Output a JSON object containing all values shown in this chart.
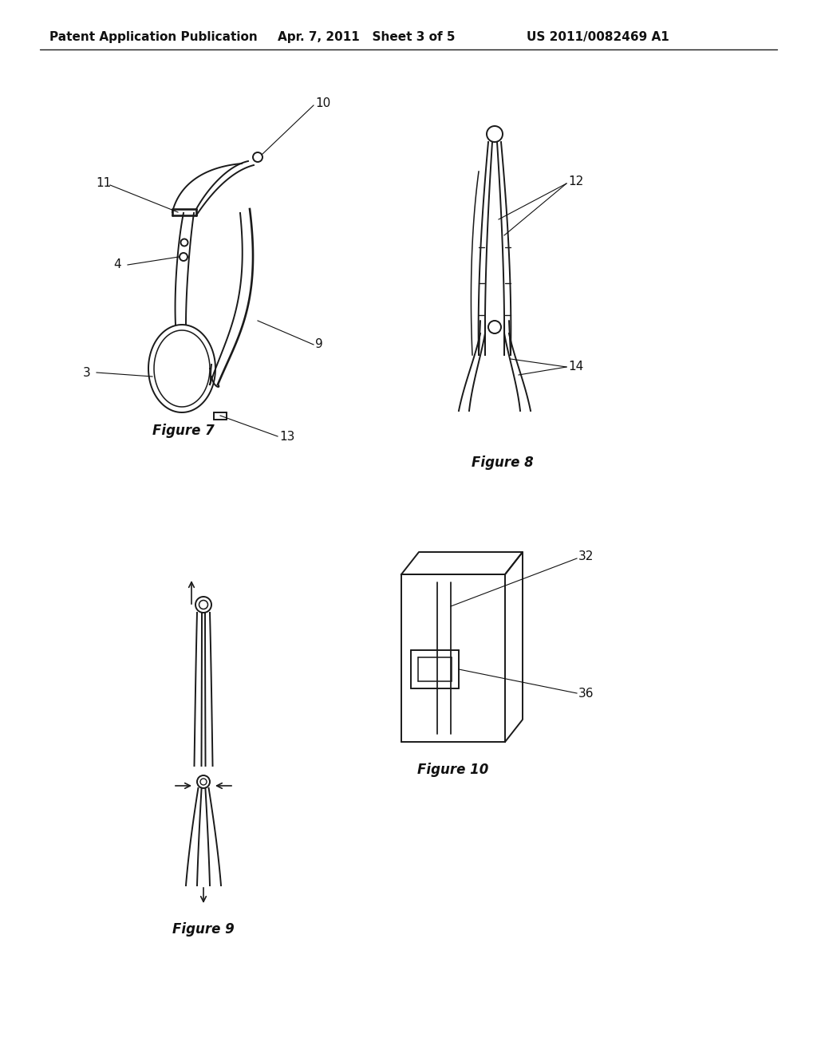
{
  "page_bg": "#ffffff",
  "header_left": "Patent Application Publication",
  "header_center": "Apr. 7, 2011   Sheet 3 of 5",
  "header_right": "US 2011/0082469 A1",
  "header_fontsize": 11,
  "line_color": "#1a1a1a",
  "text_color": "#111111",
  "label_fontsize": 12,
  "annot_fontsize": 11
}
